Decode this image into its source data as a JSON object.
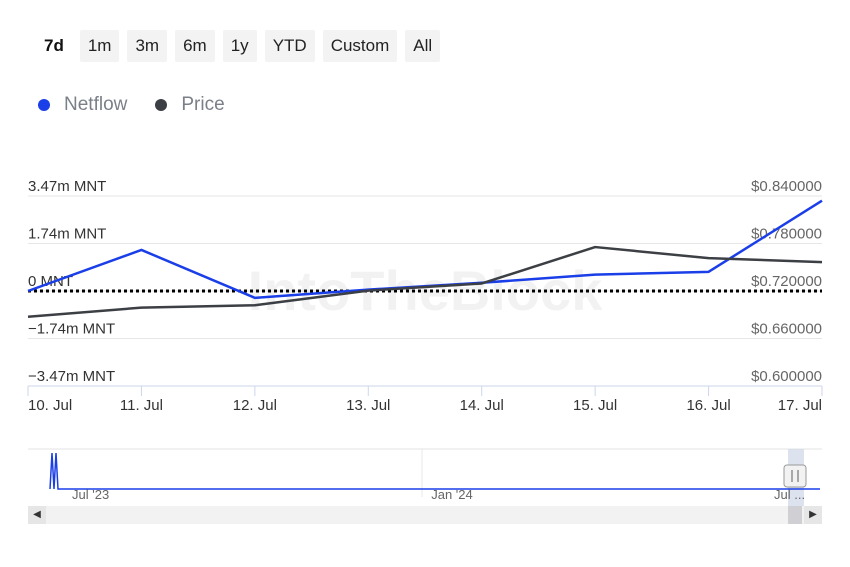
{
  "range_selector": {
    "buttons": [
      "7d",
      "1m",
      "3m",
      "6m",
      "1y",
      "YTD",
      "Custom",
      "All"
    ],
    "selected": "7d"
  },
  "legend": [
    {
      "label": "Netflow",
      "color": "#1a3ee8"
    },
    {
      "label": "Price",
      "color": "#3c3f44"
    }
  ],
  "chart_data": {
    "type": "line",
    "x": [
      "10. Jul",
      "11. Jul",
      "12. Jul",
      "13. Jul",
      "14. Jul",
      "15. Jul",
      "16. Jul",
      "17. Jul"
    ],
    "series": [
      {
        "name": "Netflow",
        "axis": "left",
        "unit": "MNT",
        "color": "#1a3ee8",
        "values": [
          0.0,
          1.5,
          -0.25,
          0.05,
          0.3,
          0.6,
          0.7,
          3.3
        ]
      },
      {
        "name": "Price",
        "axis": "right",
        "unit": "$",
        "color": "#3c3f44",
        "values": [
          0.6875,
          0.699,
          0.702,
          0.7205,
          0.7295,
          0.7755,
          0.7615,
          0.7565
        ]
      }
    ],
    "y_left": {
      "ticks": [
        "3.47m MNT",
        "1.74m MNT",
        "0 MNT",
        "−1.74m MNT",
        "−3.47m MNT"
      ],
      "range": [
        -3.47,
        3.47
      ]
    },
    "y_right": {
      "ticks": [
        "$0.840000",
        "$0.780000",
        "$0.720000",
        "$0.660000",
        "$0.600000"
      ],
      "range": [
        0.6,
        0.84
      ]
    },
    "zero_line": "dotted",
    "watermark": "IntoTheBlock",
    "grid": true
  },
  "navigator": {
    "labels": [
      "Jul '23",
      "Jan '24",
      "Jul ..."
    ]
  },
  "scrollbar": {
    "left_arrow": "◀",
    "right_arrow": "▶"
  }
}
